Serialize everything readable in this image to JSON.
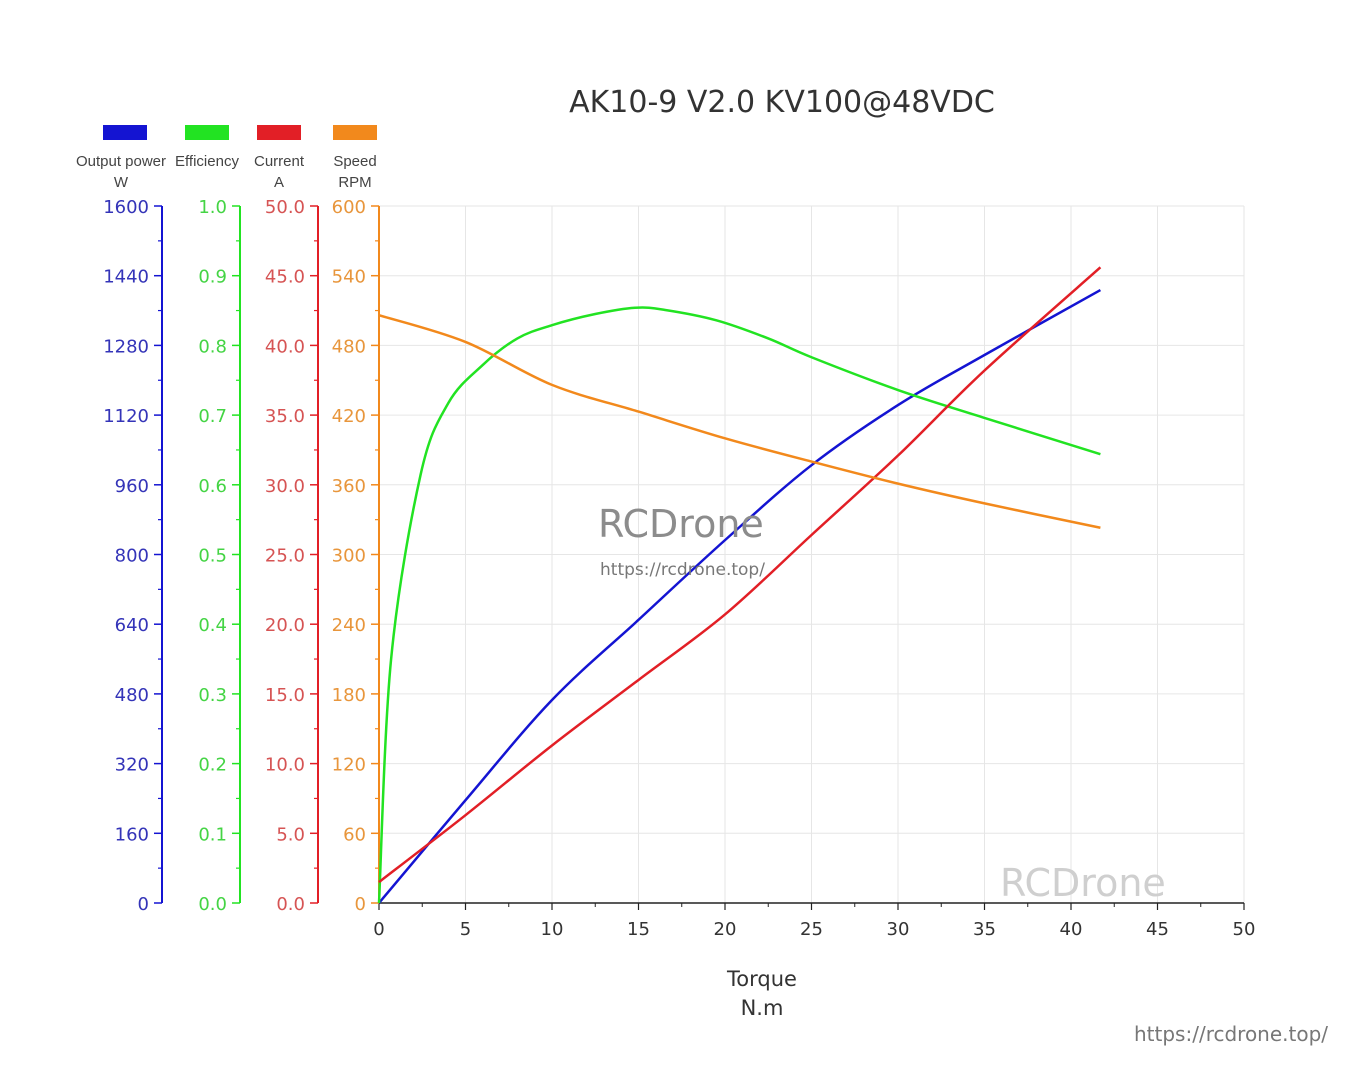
{
  "chart_data": {
    "type": "line",
    "title": "AK10-9 V2.0 KV100@48VDC",
    "xlabel": "Torque",
    "xunit": "N.m",
    "xlim": [
      0,
      50
    ],
    "xticks": [
      0,
      5,
      10,
      15,
      20,
      25,
      30,
      35,
      40,
      45,
      50
    ],
    "grid": true,
    "legend_position": "top-left",
    "axes": [
      {
        "key": "power",
        "name": "Output power",
        "unit": "W",
        "color": "#1414d2",
        "label_color": "#3434b8",
        "ylim": [
          0,
          1600
        ],
        "ticks": [
          "0",
          "160",
          "320",
          "480",
          "640",
          "800",
          "960",
          "1120",
          "1280",
          "1440",
          "1600"
        ]
      },
      {
        "key": "efficiency",
        "name": "Efficiency",
        "unit": "",
        "color": "#22e322",
        "label_color": "#44d444",
        "ylim": [
          0,
          1
        ],
        "ticks": [
          "0.0",
          "0.1",
          "0.2",
          "0.3",
          "0.4",
          "0.5",
          "0.6",
          "0.7",
          "0.8",
          "0.9",
          "1.0"
        ]
      },
      {
        "key": "current",
        "name": "Current",
        "unit": "A",
        "color": "#e21f26",
        "label_color": "#d65454",
        "ylim": [
          0,
          50
        ],
        "ticks": [
          "0.0",
          "5.0",
          "10.0",
          "15.0",
          "20.0",
          "25.0",
          "30.0",
          "35.0",
          "40.0",
          "45.0",
          "50.0"
        ]
      },
      {
        "key": "speed",
        "name": "Speed",
        "unit": "RPM",
        "color": "#f2891c",
        "label_color": "#e8963c",
        "ylim": [
          0,
          600
        ],
        "ticks": [
          "0",
          "60",
          "120",
          "180",
          "240",
          "300",
          "360",
          "420",
          "480",
          "540",
          "600"
        ]
      }
    ],
    "series": [
      {
        "name": "Output power",
        "axis": "power",
        "x": [
          0,
          5,
          10,
          15,
          20,
          25,
          30,
          35,
          41.7
        ],
        "y": [
          0,
          236,
          466,
          650,
          833,
          1005,
          1143,
          1258,
          1407
        ]
      },
      {
        "name": "Efficiency",
        "axis": "efficiency",
        "x": [
          0,
          0.7,
          2.4,
          4,
          6,
          8,
          10,
          12.5,
          14.8,
          16.5,
          19.5,
          22.5,
          25,
          30,
          35,
          41.7
        ],
        "y": [
          0,
          0.35,
          0.614,
          0.717,
          0.772,
          0.81,
          0.829,
          0.845,
          0.854,
          0.851,
          0.836,
          0.81,
          0.783,
          0.736,
          0.696,
          0.644
        ]
      },
      {
        "name": "Current",
        "axis": "current",
        "x": [
          0,
          5,
          10,
          15,
          20,
          25,
          30,
          35,
          41.7
        ],
        "y": [
          1.5,
          6.3,
          11.3,
          16.0,
          20.7,
          26.4,
          32.1,
          38.2,
          45.6
        ]
      },
      {
        "name": "Speed",
        "axis": "speed",
        "x": [
          0,
          5,
          10,
          15,
          20,
          25,
          30,
          35,
          41.7
        ],
        "y": [
          506,
          483,
          446,
          423,
          400,
          380,
          361,
          344,
          323
        ]
      }
    ]
  },
  "watermarks": {
    "center_brand": "RCDrone",
    "center_url": "https://rcdrone.top/",
    "axis_brand": "RCDrone",
    "corner_url": "https://rcdrone.top/"
  }
}
